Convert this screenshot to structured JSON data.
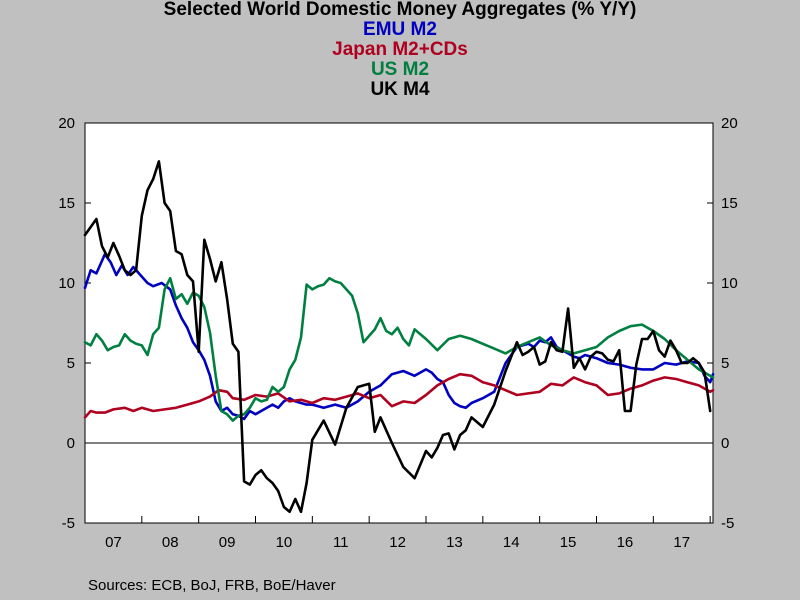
{
  "chart_data": {
    "type": "line",
    "title": "Selected World Domestic Money Aggregates (% Y/Y)",
    "source": "Sources:  ECB, BoJ, FRB, BoE/Haver",
    "x_tick_labels": [
      "07",
      "08",
      "09",
      "10",
      "11",
      "12",
      "13",
      "14",
      "15",
      "16",
      "17"
    ],
    "x_range": [
      2007.0,
      2018.05
    ],
    "ylim": [
      -5,
      20
    ],
    "y_ticks": [
      -5,
      0,
      5,
      10,
      15,
      20
    ],
    "y_tick_labels": [
      "-5",
      "0",
      "5",
      "10",
      "15",
      "20"
    ],
    "zero_line": true,
    "grid": false,
    "legend_placement": "top-center",
    "series": [
      {
        "name": "EMU M2",
        "color": "#0000c0",
        "x": [
          2007.0,
          2007.1,
          2007.2,
          2007.35,
          2007.45,
          2007.55,
          2007.65,
          2007.75,
          2007.85,
          2008.0,
          2008.1,
          2008.2,
          2008.35,
          2008.5,
          2008.6,
          2008.7,
          2008.8,
          2008.9,
          2009.0,
          2009.1,
          2009.2,
          2009.3,
          2009.4,
          2009.5,
          2009.6,
          2009.7,
          2009.8,
          2009.9,
          2010.0,
          2010.1,
          2010.2,
          2010.3,
          2010.4,
          2010.5,
          2010.6,
          2010.7,
          2010.8,
          2010.9,
          2011.0,
          2011.2,
          2011.4,
          2011.6,
          2011.8,
          2012.0,
          2012.2,
          2012.4,
          2012.6,
          2012.8,
          2013.0,
          2013.1,
          2013.2,
          2013.3,
          2013.4,
          2013.5,
          2013.6,
          2013.7,
          2013.8,
          2014.0,
          2014.2,
          2014.4,
          2014.6,
          2014.8,
          2014.9,
          2015.0,
          2015.1,
          2015.2,
          2015.3,
          2015.4,
          2015.5,
          2015.6,
          2015.7,
          2015.8,
          2016.0,
          2016.2,
          2016.4,
          2016.6,
          2016.8,
          2017.0,
          2017.2,
          2017.4,
          2017.6,
          2017.8,
          2017.9,
          2018.0,
          2018.05
        ],
        "y": [
          9.7,
          10.8,
          10.6,
          11.8,
          11.3,
          10.5,
          11.1,
          10.5,
          11.0,
          10.4,
          10.0,
          9.8,
          10.0,
          9.6,
          8.6,
          7.8,
          7.2,
          6.3,
          5.8,
          5.2,
          4.2,
          2.6,
          2.0,
          2.2,
          1.8,
          1.7,
          1.5,
          2.0,
          1.8,
          2.0,
          2.2,
          2.4,
          2.2,
          2.6,
          2.8,
          2.6,
          2.5,
          2.4,
          2.4,
          2.2,
          2.4,
          2.2,
          2.6,
          3.2,
          3.6,
          4.3,
          4.5,
          4.2,
          4.6,
          4.4,
          4.0,
          3.8,
          3.0,
          2.5,
          2.3,
          2.2,
          2.5,
          2.8,
          3.2,
          5.0,
          6.0,
          6.2,
          6.0,
          6.4,
          6.3,
          6.6,
          6.0,
          5.8,
          5.6,
          5.4,
          5.3,
          5.5,
          5.3,
          5.0,
          4.9,
          4.7,
          4.6,
          4.6,
          5.0,
          4.9,
          5.1,
          5.0,
          4.2,
          3.8,
          4.3
        ]
      },
      {
        "name": "Japan M2+CDs",
        "color": "#b00020",
        "x": [
          2007.0,
          2007.1,
          2007.2,
          2007.35,
          2007.5,
          2007.7,
          2007.85,
          2008.0,
          2008.2,
          2008.4,
          2008.6,
          2008.8,
          2009.0,
          2009.2,
          2009.35,
          2009.5,
          2009.6,
          2009.8,
          2010.0,
          2010.2,
          2010.4,
          2010.6,
          2010.8,
          2011.0,
          2011.2,
          2011.4,
          2011.6,
          2011.8,
          2012.0,
          2012.2,
          2012.4,
          2012.6,
          2012.8,
          2013.0,
          2013.2,
          2013.4,
          2013.6,
          2013.8,
          2014.0,
          2014.2,
          2014.4,
          2014.6,
          2014.8,
          2015.0,
          2015.2,
          2015.4,
          2015.6,
          2015.8,
          2016.0,
          2016.2,
          2016.4,
          2016.6,
          2016.8,
          2017.0,
          2017.2,
          2017.4,
          2017.6,
          2017.8,
          2018.0,
          2018.05
        ],
        "y": [
          1.6,
          2.0,
          1.9,
          1.9,
          2.1,
          2.2,
          2.0,
          2.2,
          2.0,
          2.1,
          2.2,
          2.4,
          2.6,
          2.9,
          3.3,
          3.2,
          2.8,
          2.7,
          3.0,
          2.9,
          3.1,
          2.6,
          2.7,
          2.5,
          2.8,
          2.7,
          2.9,
          3.1,
          2.8,
          3.0,
          2.3,
          2.6,
          2.5,
          3.0,
          3.6,
          4.0,
          4.3,
          4.2,
          3.8,
          3.6,
          3.3,
          3.0,
          3.1,
          3.2,
          3.7,
          3.6,
          4.1,
          3.8,
          3.6,
          3.0,
          3.1,
          3.4,
          3.6,
          3.9,
          4.1,
          4.0,
          3.8,
          3.6,
          3.2,
          3.3
        ]
      },
      {
        "name": "US M2",
        "color": "#008040",
        "x": [
          2007.0,
          2007.1,
          2007.2,
          2007.3,
          2007.4,
          2007.5,
          2007.6,
          2007.7,
          2007.8,
          2007.9,
          2008.0,
          2008.1,
          2008.2,
          2008.3,
          2008.4,
          2008.5,
          2008.6,
          2008.7,
          2008.8,
          2008.9,
          2009.0,
          2009.1,
          2009.2,
          2009.3,
          2009.4,
          2009.5,
          2009.6,
          2009.7,
          2009.8,
          2009.9,
          2010.0,
          2010.1,
          2010.2,
          2010.3,
          2010.4,
          2010.5,
          2010.6,
          2010.7,
          2010.8,
          2010.9,
          2011.0,
          2011.1,
          2011.2,
          2011.3,
          2011.4,
          2011.5,
          2011.6,
          2011.7,
          2011.8,
          2011.9,
          2012.0,
          2012.1,
          2012.2,
          2012.3,
          2012.4,
          2012.5,
          2012.6,
          2012.7,
          2012.8,
          2013.0,
          2013.2,
          2013.4,
          2013.6,
          2013.8,
          2014.0,
          2014.2,
          2014.4,
          2014.6,
          2014.8,
          2015.0,
          2015.2,
          2015.4,
          2015.6,
          2015.8,
          2016.0,
          2016.2,
          2016.4,
          2016.6,
          2016.8,
          2017.0,
          2017.2,
          2017.4,
          2017.6,
          2017.8,
          2018.0,
          2018.05
        ],
        "y": [
          6.3,
          6.1,
          6.8,
          6.4,
          5.8,
          6.0,
          6.1,
          6.8,
          6.4,
          6.2,
          6.1,
          5.5,
          6.8,
          7.2,
          9.6,
          10.3,
          9.0,
          9.3,
          8.7,
          9.4,
          9.2,
          8.5,
          6.9,
          4.2,
          2.0,
          1.8,
          1.4,
          1.7,
          1.8,
          2.2,
          2.8,
          2.6,
          2.7,
          3.5,
          3.2,
          3.5,
          4.6,
          5.2,
          6.6,
          9.9,
          9.6,
          9.8,
          9.9,
          10.3,
          10.1,
          10.0,
          9.6,
          9.2,
          8.1,
          6.3,
          6.7,
          7.1,
          7.8,
          7.0,
          6.8,
          7.2,
          6.5,
          6.1,
          7.1,
          6.5,
          5.8,
          6.5,
          6.7,
          6.5,
          6.2,
          5.9,
          5.6,
          6.0,
          6.3,
          6.6,
          6.1,
          5.8,
          5.6,
          5.8,
          6.0,
          6.6,
          7.0,
          7.3,
          7.4,
          7.0,
          6.5,
          5.8,
          5.2,
          4.6,
          4.2,
          4.1
        ]
      },
      {
        "name": "UK M4",
        "color": "#000000",
        "x": [
          2007.0,
          2007.1,
          2007.2,
          2007.3,
          2007.4,
          2007.5,
          2007.6,
          2007.7,
          2007.8,
          2007.9,
          2008.0,
          2008.1,
          2008.2,
          2008.3,
          2008.4,
          2008.5,
          2008.6,
          2008.7,
          2008.8,
          2008.9,
          2009.0,
          2009.1,
          2009.2,
          2009.3,
          2009.4,
          2009.5,
          2009.6,
          2009.7,
          2009.8,
          2009.9,
          2010.0,
          2010.1,
          2010.2,
          2010.3,
          2010.4,
          2010.5,
          2010.6,
          2010.7,
          2010.8,
          2010.9,
          2011.0,
          2011.2,
          2011.4,
          2011.6,
          2011.8,
          2012.0,
          2012.1,
          2012.2,
          2012.4,
          2012.6,
          2012.8,
          2013.0,
          2013.1,
          2013.2,
          2013.3,
          2013.4,
          2013.5,
          2013.6,
          2013.7,
          2013.8,
          2014.0,
          2014.2,
          2014.4,
          2014.6,
          2014.7,
          2014.8,
          2014.9,
          2015.0,
          2015.1,
          2015.2,
          2015.3,
          2015.4,
          2015.5,
          2015.6,
          2015.7,
          2015.8,
          2015.9,
          2016.0,
          2016.1,
          2016.2,
          2016.3,
          2016.4,
          2016.5,
          2016.6,
          2016.7,
          2016.8,
          2016.9,
          2017.0,
          2017.1,
          2017.2,
          2017.3,
          2017.4,
          2017.5,
          2017.6,
          2017.7,
          2017.8,
          2017.9,
          2018.0
        ],
        "y": [
          13.0,
          13.5,
          14.0,
          12.3,
          11.6,
          12.5,
          11.7,
          10.8,
          10.5,
          10.8,
          14.2,
          15.8,
          16.5,
          17.6,
          15.0,
          14.5,
          12.0,
          11.8,
          10.5,
          10.1,
          5.7,
          12.7,
          11.5,
          10.1,
          11.3,
          9.0,
          6.2,
          5.7,
          -2.4,
          -2.6,
          -2.0,
          -1.7,
          -2.2,
          -2.5,
          -3.0,
          -4.0,
          -4.3,
          -3.5,
          -4.3,
          -2.5,
          0.2,
          1.4,
          -0.1,
          2.2,
          3.5,
          3.7,
          0.7,
          1.6,
          0.0,
          -1.5,
          -2.2,
          -0.5,
          -0.9,
          -0.3,
          0.5,
          0.6,
          -0.4,
          0.5,
          0.8,
          1.6,
          1.0,
          2.4,
          4.5,
          6.3,
          5.5,
          5.7,
          6.0,
          4.9,
          5.1,
          6.3,
          5.8,
          5.7,
          8.4,
          4.7,
          5.3,
          4.6,
          5.4,
          5.7,
          5.6,
          5.2,
          5.1,
          5.8,
          2.0,
          2.0,
          4.9,
          6.5,
          6.5,
          7.0,
          5.8,
          5.4,
          6.4,
          5.8,
          5.0,
          5.0,
          5.3,
          5.0,
          4.4,
          2.0
        ]
      }
    ]
  }
}
